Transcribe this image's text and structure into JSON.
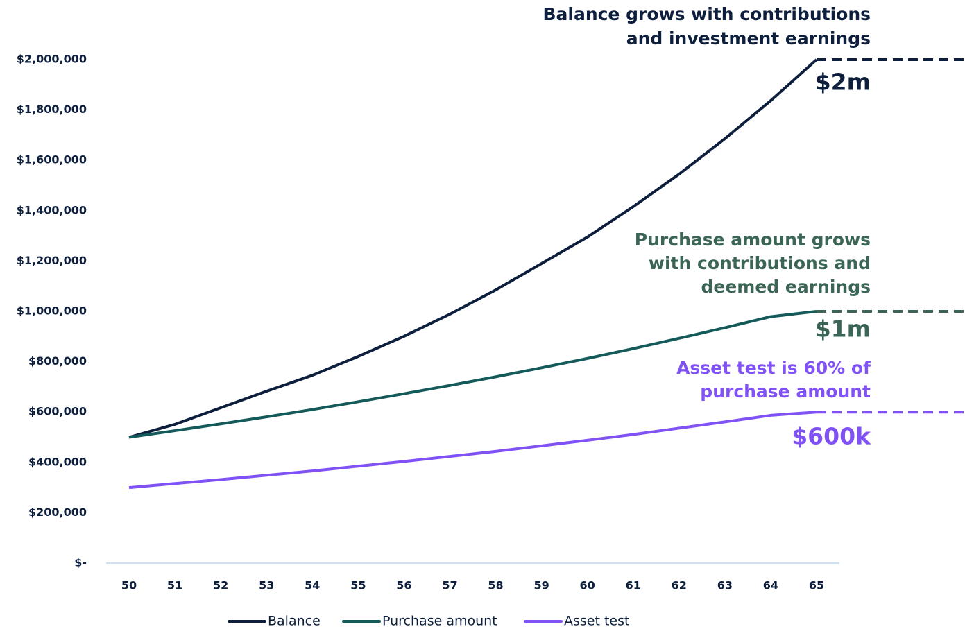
{
  "chart_data": {
    "type": "line",
    "x": [
      50,
      51,
      52,
      53,
      54,
      55,
      56,
      57,
      58,
      59,
      60,
      61,
      62,
      63,
      64,
      65
    ],
    "xlim": [
      50,
      65
    ],
    "series": [
      {
        "name": "Balance",
        "color": "#0d1f3c",
        "values": [
          500000,
          551000,
          617000,
          683000,
          746000,
          821000,
          901000,
          989000,
          1085000,
          1190000,
          1295000,
          1416000,
          1545000,
          1686000,
          1837000,
          2000000
        ]
      },
      {
        "name": "Purchase amount",
        "color": "#145a5a",
        "values": [
          500000,
          526000,
          553000,
          581000,
          610000,
          641000,
          673000,
          706000,
          740000,
          776000,
          813000,
          852000,
          893000,
          935000,
          979000,
          1000000
        ]
      },
      {
        "name": "Asset test",
        "color": "#8052f5",
        "values": [
          300000,
          316000,
          332000,
          349000,
          366000,
          385000,
          404000,
          424000,
          444000,
          466000,
          488000,
          511000,
          536000,
          561000,
          587000,
          600000
        ]
      }
    ],
    "ylim": [
      0,
      2000000
    ],
    "yticks": [
      {
        "value": 0,
        "label": "$-"
      },
      {
        "value": 200000,
        "label": "$200,000"
      },
      {
        "value": 400000,
        "label": "$400,000"
      },
      {
        "value": 600000,
        "label": "$600,000"
      },
      {
        "value": 800000,
        "label": "$800,000"
      },
      {
        "value": 1000000,
        "label": "$1,000,000"
      },
      {
        "value": 1200000,
        "label": "$1,200,000"
      },
      {
        "value": 1400000,
        "label": "$1,400,000"
      },
      {
        "value": 1600000,
        "label": "$1,600,000"
      },
      {
        "value": 1800000,
        "label": "$1,800,000"
      },
      {
        "value": 2000000,
        "label": "$2,000,000"
      }
    ],
    "legend": "bottom",
    "annotations": [
      {
        "lines": [
          "Balance grows with contributions",
          "and investment earnings"
        ],
        "label": "$2m",
        "color": "#0d1f3c"
      },
      {
        "lines": [
          "Purchase amount grows",
          "with contributions and",
          "deemed earnings"
        ],
        "label": "$1m",
        "color": "#3b6655"
      },
      {
        "lines": [
          "Asset test is 60% of",
          "purchase amount"
        ],
        "label": "$600k",
        "color": "#8052f5"
      }
    ]
  }
}
